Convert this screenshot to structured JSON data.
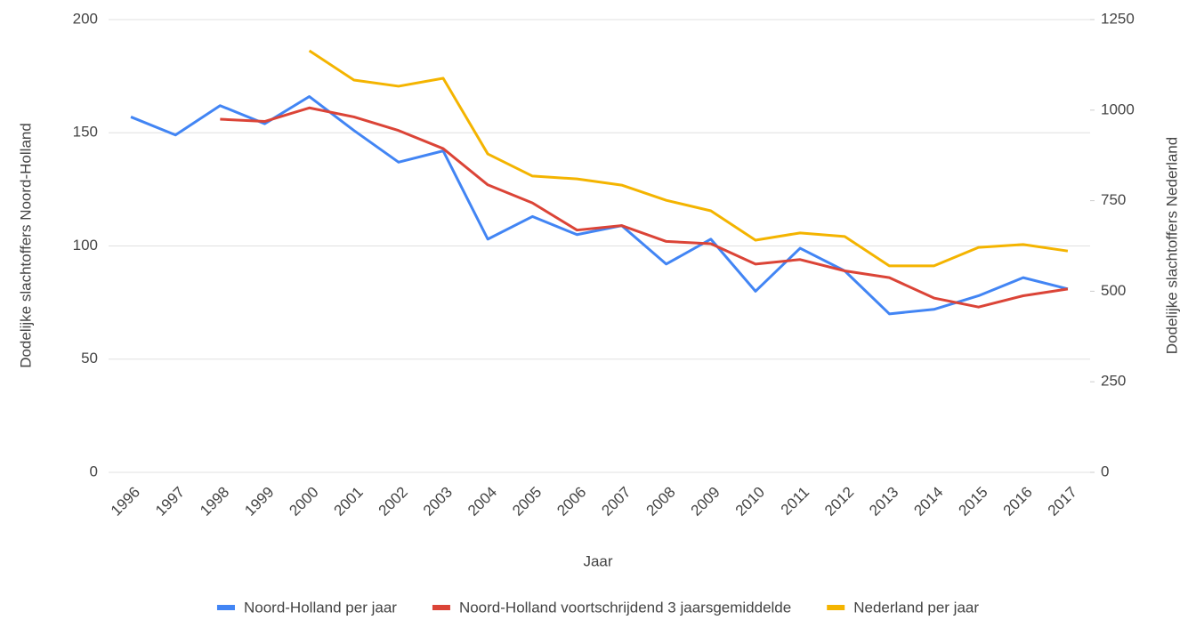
{
  "chart_data": {
    "type": "line",
    "x_label": "Jaar",
    "y_label": "Dodelijke slachtoffers Noord-Holland",
    "y2_label": "Dodelijke slachtoffers Nederland",
    "categories": [
      "1996",
      "1997",
      "1998",
      "1999",
      "2000",
      "2001",
      "2002",
      "2003",
      "2004",
      "2005",
      "2006",
      "2007",
      "2008",
      "2009",
      "2010",
      "2011",
      "2012",
      "2013",
      "2014",
      "2015",
      "2016",
      "2017"
    ],
    "series": [
      {
        "name": "Noord-Holland per jaar",
        "color": "#4285f4",
        "values": [
          157,
          149,
          162,
          154,
          166,
          151,
          137,
          142,
          103,
          113,
          105,
          109,
          92,
          103,
          80,
          99,
          89,
          70,
          72,
          78,
          86,
          81
        ]
      },
      {
        "name": "Noord-Holland voortschrijdend 3 jaarsgemiddelde",
        "color": "#db4437",
        "values": [
          null,
          null,
          156,
          155,
          161,
          157,
          151,
          143,
          127,
          119,
          107,
          109,
          102,
          101,
          92,
          94,
          89,
          86,
          77,
          73,
          78,
          81
        ]
      },
      {
        "name": "Nederland per jaar",
        "color": "#f4b400",
        "axis": "y2",
        "values": [
          null,
          null,
          null,
          null,
          1164,
          1083,
          1066,
          1088,
          879,
          818,
          810,
          793,
          751,
          722,
          641,
          661,
          651,
          570,
          570,
          621,
          629,
          611
        ]
      }
    ],
    "ylim": [
      0,
      200
    ],
    "yticks": [
      0,
      50,
      100,
      150,
      200
    ],
    "y2lim": [
      0,
      1250
    ],
    "y2ticks": [
      0,
      250,
      500,
      750,
      1000,
      1250
    ],
    "grid": true,
    "legend": "bottom"
  }
}
